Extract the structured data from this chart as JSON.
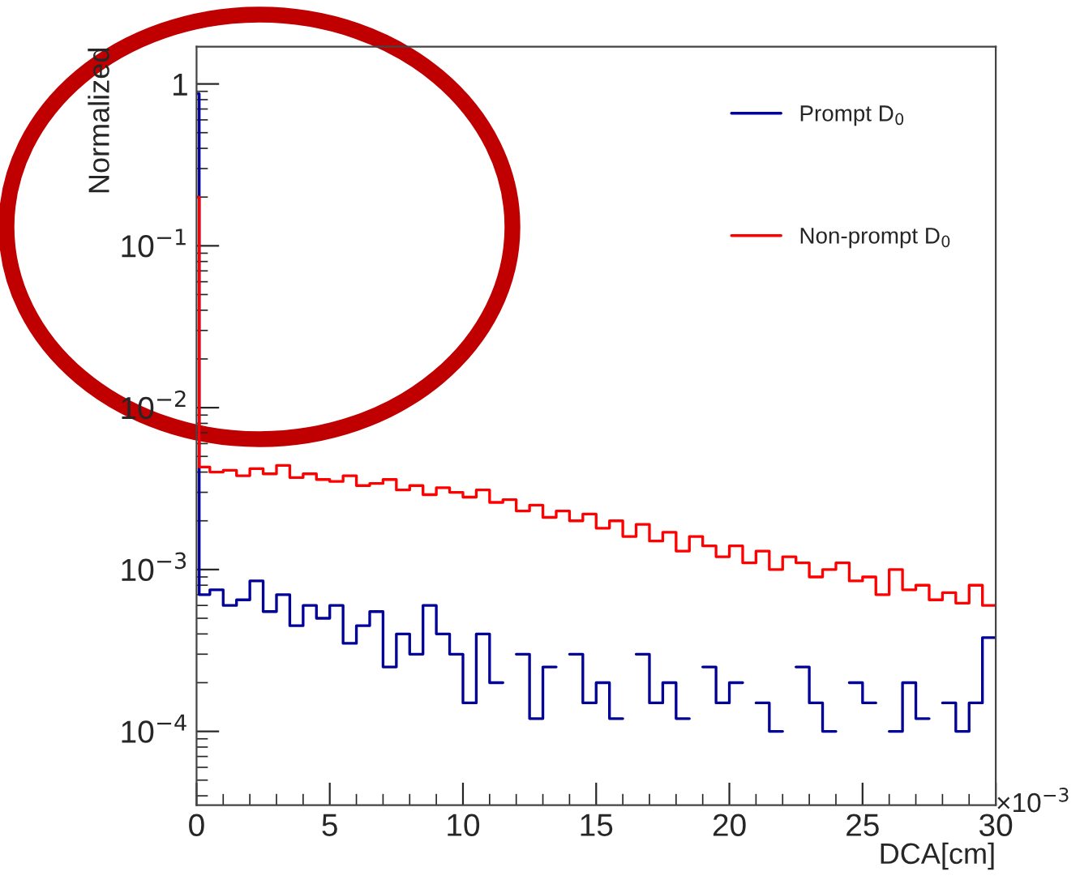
{
  "chart_data": {
    "type": "step",
    "xlabel": "DCA[cm]",
    "ylabel": "Normalized",
    "log": "y",
    "xlim": [
      0,
      30
    ],
    "xticks": [
      0,
      5,
      10,
      15,
      20,
      25,
      30
    ],
    "ylim": [
      3.5e-05,
      1.7
    ],
    "yticks": [
      {
        "value": 0.0001,
        "label": "10$^{−4}$"
      },
      {
        "value": 0.001,
        "label": "10$^{−3}$"
      },
      {
        "value": 0.01,
        "label": "10$^{−2}$"
      },
      {
        "value": 0.1,
        "label": "10$^{−1}$"
      },
      1
    ],
    "x": [
      0,
      0.1,
      0.5,
      1.0,
      1.5,
      2.0,
      2.5,
      3.0,
      3.5,
      4.0,
      4.5,
      5.0,
      5.5,
      6.0,
      6.5,
      7.0,
      7.5,
      8.0,
      8.5,
      9.0,
      9.5,
      10.0,
      10.5,
      11.0,
      11.5,
      12.0,
      12.5,
      13.0,
      13.5,
      14.0,
      14.5,
      15.0,
      15.5,
      16.0,
      16.5,
      17.0,
      17.5,
      18.0,
      18.5,
      19.0,
      19.5,
      20.0,
      20.5,
      21.0,
      21.5,
      22.0,
      22.5,
      23.0,
      23.5,
      24.0,
      24.5,
      25.0,
      25.5,
      26.0,
      26.5,
      27.0,
      27.5,
      28.0,
      28.5,
      29.0,
      29.5,
      30.0
    ],
    "series": [
      {
        "name": "Prompt D$_{0}$",
        "color": "#000099",
        "values": [
          0.87,
          0.0007,
          0.00075,
          0.0006,
          0.00065,
          0.00085,
          0.00055,
          0.0007,
          0.00045,
          0.0006,
          0.0005,
          0.0006,
          0.00035,
          0.00045,
          0.00055,
          0.00025,
          0.0004,
          0.0003,
          0.0006,
          0.0004,
          0.0003,
          0.00015,
          0.0004,
          0.0002,
          null,
          0.0003,
          0.00012,
          0.00025,
          null,
          0.0003,
          0.00015,
          0.0002,
          0.00012,
          null,
          0.0003,
          0.00015,
          0.0002,
          0.00012,
          null,
          0.00025,
          0.00015,
          0.0002,
          null,
          0.00015,
          0.0001,
          null,
          0.00025,
          0.00015,
          0.0001,
          null,
          0.0002,
          0.00015,
          null,
          0.0001,
          0.0002,
          0.00012,
          null,
          0.00015,
          0.0001,
          0.00015,
          0.00038,
          0.00038
        ]
      },
      {
        "name": "Non-prompt D$_{0}$",
        "color": "#ff0000",
        "values": [
          0.2,
          0.0043,
          0.004,
          0.0041,
          0.0038,
          0.0042,
          0.0039,
          0.0044,
          0.0037,
          0.0039,
          0.0036,
          0.0035,
          0.0038,
          0.0033,
          0.0034,
          0.0036,
          0.0031,
          0.0033,
          0.0029,
          0.0032,
          0.003,
          0.0028,
          0.0031,
          0.0026,
          0.0027,
          0.0023,
          0.0025,
          0.0021,
          0.0023,
          0.002,
          0.0022,
          0.0018,
          0.002,
          0.0016,
          0.0019,
          0.0015,
          0.0017,
          0.0013,
          0.0016,
          0.0014,
          0.0012,
          0.0014,
          0.0011,
          0.0013,
          0.001,
          0.0012,
          0.0011,
          0.0009,
          0.001,
          0.0011,
          0.00085,
          0.0009,
          0.0007,
          0.001,
          0.00075,
          0.0008,
          0.00065,
          0.00072,
          0.00062,
          0.0008,
          0.0006,
          0.0006
        ]
      }
    ],
    "legend": "top right",
    "grid": false,
    "annotations": [
      "×10$^{−3}$"
    ]
  }
}
